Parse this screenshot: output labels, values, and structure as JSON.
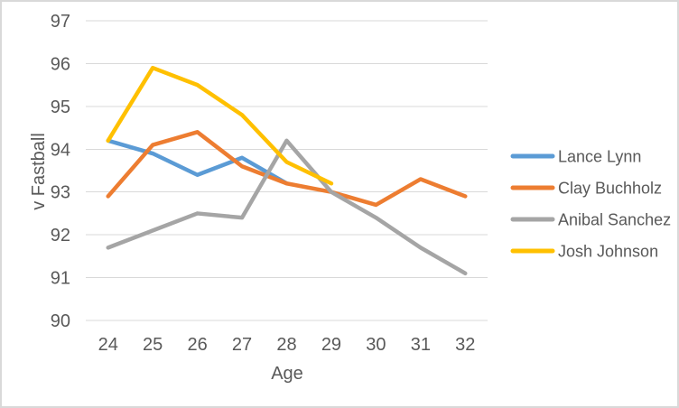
{
  "chart_data": {
    "type": "line",
    "x": [
      24,
      25,
      26,
      27,
      28,
      29,
      30,
      31,
      32
    ],
    "xlabel": "Age",
    "ylabel": "v Fastball",
    "ylim": [
      90,
      97
    ],
    "y_ticks": [
      90,
      91,
      92,
      93,
      94,
      95,
      96,
      97
    ],
    "grid": true,
    "legend_position": "right",
    "series": [
      {
        "name": "Lance Lynn",
        "color": "#5B9BD5",
        "values": [
          94.2,
          93.9,
          93.4,
          93.8,
          93.2,
          null,
          null,
          null,
          null
        ]
      },
      {
        "name": "Clay Buchholz",
        "color": "#ED7D31",
        "values": [
          92.9,
          94.1,
          94.4,
          93.6,
          93.2,
          93.0,
          92.7,
          93.3,
          92.9
        ]
      },
      {
        "name": "Anibal Sanchez",
        "color": "#A5A5A5",
        "values": [
          91.7,
          92.1,
          92.5,
          92.4,
          94.2,
          93.0,
          92.4,
          91.7,
          91.1
        ]
      },
      {
        "name": "Josh Johnson",
        "color": "#FFC000",
        "values": [
          94.2,
          95.9,
          95.5,
          94.8,
          93.7,
          93.2,
          null,
          null,
          null
        ]
      }
    ]
  },
  "styles": {
    "text_color": "#595959",
    "gridline_color": "#D9D9D9",
    "border_color": "#D9D9D9",
    "background": "#FFFFFF"
  }
}
